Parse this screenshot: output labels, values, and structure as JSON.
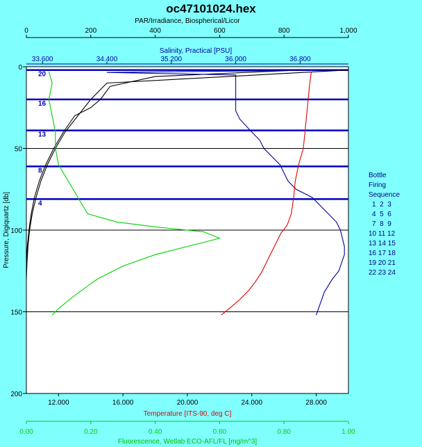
{
  "chart_data": {
    "type": "line",
    "title": "oc47101024.hex",
    "colors": {
      "background": "#80ffff",
      "plot_bg": "#ffffff",
      "par": "#000000",
      "salinity": "#0000a0",
      "temperature": "#e00000",
      "fluorescence": "#00d000",
      "bottle": "#0000c0"
    },
    "axes": {
      "y": {
        "label": "Pressure, Digiquartz [db]",
        "range": [
          0,
          200
        ],
        "ticks": [
          "0",
          "50",
          "100",
          "150",
          "200"
        ],
        "inverted": true,
        "grid": true
      },
      "par": {
        "label": "PAR/Irradiance, Biospherical/Licor",
        "range": [
          0,
          1000
        ],
        "ticks": [
          "0",
          "200",
          "400",
          "600",
          "800",
          "1,000"
        ],
        "position": "top"
      },
      "salinity": {
        "label": "Salinity, Practical [PSU]",
        "range": [
          33.4,
          37.4
        ],
        "ticks": [
          "33.600",
          "34.400",
          "35.200",
          "36.000",
          "36.800"
        ],
        "tick_values": [
          33.6,
          34.4,
          35.2,
          36.0,
          36.8
        ],
        "position": "top"
      },
      "temperature": {
        "label": "Temperature [ITS-90, deg C]",
        "range": [
          10.0,
          30.0
        ],
        "ticks": [
          "12.000",
          "16.000",
          "20.000",
          "24.000",
          "28.000"
        ],
        "tick_values": [
          12,
          16,
          20,
          24,
          28
        ],
        "position": "bottom"
      },
      "fluorescence": {
        "label": "Fluorescence, Wetlab ECO-AFL/FL [mg/m^3]",
        "range": [
          0,
          1.0
        ],
        "ticks": [
          "0.00",
          "0.20",
          "0.40",
          "0.60",
          "0.80",
          "1.00"
        ],
        "position": "bottom"
      }
    },
    "series": [
      {
        "key": "par",
        "axis": "par",
        "values": [
          [
            1000,
            2
          ],
          [
            250,
            10
          ],
          [
            200,
            20
          ],
          [
            160,
            30
          ],
          [
            120,
            40
          ],
          [
            90,
            50
          ],
          [
            65,
            60
          ],
          [
            45,
            70
          ],
          [
            30,
            80
          ],
          [
            18,
            90
          ],
          [
            10,
            100
          ],
          [
            5,
            110
          ],
          [
            2,
            120
          ],
          [
            0,
            130
          ]
        ]
      },
      {
        "key": "par",
        "axis": "par",
        "values": [
          [
            850,
            2
          ],
          [
            400,
            6
          ],
          [
            260,
            12
          ],
          [
            230,
            20
          ],
          [
            200,
            25
          ],
          [
            150,
            30
          ],
          [
            115,
            40
          ],
          [
            85,
            50
          ],
          [
            60,
            60
          ],
          [
            40,
            70
          ],
          [
            25,
            80
          ],
          [
            15,
            90
          ],
          [
            8,
            100
          ],
          [
            3,
            110
          ],
          [
            0,
            120
          ]
        ]
      },
      {
        "key": "salinity",
        "axis": "salinity",
        "values": [
          [
            37.3,
            2
          ],
          [
            34.4,
            3.5
          ],
          [
            36.0,
            5
          ],
          [
            36.0,
            20
          ],
          [
            36.0,
            27
          ],
          [
            36.05,
            32
          ],
          [
            36.2,
            40
          ],
          [
            36.3,
            45
          ],
          [
            36.35,
            50
          ],
          [
            36.45,
            55
          ],
          [
            36.55,
            60
          ],
          [
            36.65,
            70
          ],
          [
            36.75,
            75
          ],
          [
            36.95,
            80
          ],
          [
            37.05,
            85
          ],
          [
            37.15,
            90
          ],
          [
            37.25,
            95
          ],
          [
            37.3,
            100
          ],
          [
            37.35,
            110
          ],
          [
            37.35,
            115
          ],
          [
            37.28,
            125
          ],
          [
            37.2,
            130
          ],
          [
            37.1,
            138
          ],
          [
            37.05,
            145
          ],
          [
            37.0,
            152
          ]
        ]
      },
      {
        "key": "temperature",
        "axis": "temperature",
        "values": [
          [
            27.7,
            3
          ],
          [
            27.6,
            10
          ],
          [
            27.5,
            20
          ],
          [
            27.4,
            30
          ],
          [
            27.3,
            40
          ],
          [
            27.2,
            50
          ],
          [
            26.9,
            60
          ],
          [
            26.7,
            70
          ],
          [
            26.6,
            80
          ],
          [
            26.45,
            90
          ],
          [
            26.2,
            97
          ],
          [
            25.8,
            102
          ],
          [
            25.4,
            110
          ],
          [
            25.0,
            118
          ],
          [
            24.6,
            126
          ],
          [
            24.2,
            132
          ],
          [
            23.8,
            137
          ],
          [
            23.2,
            143
          ],
          [
            22.6,
            148
          ],
          [
            22.1,
            152
          ]
        ]
      },
      {
        "key": "fluorescence",
        "axis": "fluorescence",
        "values": [
          [
            0.07,
            3
          ],
          [
            0.08,
            10
          ],
          [
            0.07,
            20
          ],
          [
            0.08,
            30
          ],
          [
            0.09,
            40
          ],
          [
            0.09,
            50
          ],
          [
            0.1,
            60
          ],
          [
            0.13,
            70
          ],
          [
            0.16,
            80
          ],
          [
            0.19,
            90
          ],
          [
            0.28,
            95
          ],
          [
            0.4,
            98
          ],
          [
            0.55,
            101
          ],
          [
            0.6,
            105
          ],
          [
            0.5,
            110
          ],
          [
            0.4,
            115
          ],
          [
            0.3,
            122
          ],
          [
            0.22,
            130
          ],
          [
            0.15,
            140
          ],
          [
            0.1,
            148
          ],
          [
            0.08,
            152
          ]
        ]
      }
    ],
    "bottle_firings": [
      {
        "pressure": 2,
        "label": "20"
      },
      {
        "pressure": 20,
        "label": "16"
      },
      {
        "pressure": 39,
        "label": "13"
      },
      {
        "pressure": 61,
        "label": "8"
      },
      {
        "pressure": 81,
        "label": "4"
      }
    ],
    "legend": {
      "title_lines": [
        "Bottle",
        "Firing",
        "Sequence"
      ],
      "rows": [
        "1  2  3",
        "4  5  6",
        "7  8  9",
        "10 11 12",
        "13 14 15",
        "16 17 18",
        "19 20 21",
        "22 23 24"
      ]
    }
  }
}
